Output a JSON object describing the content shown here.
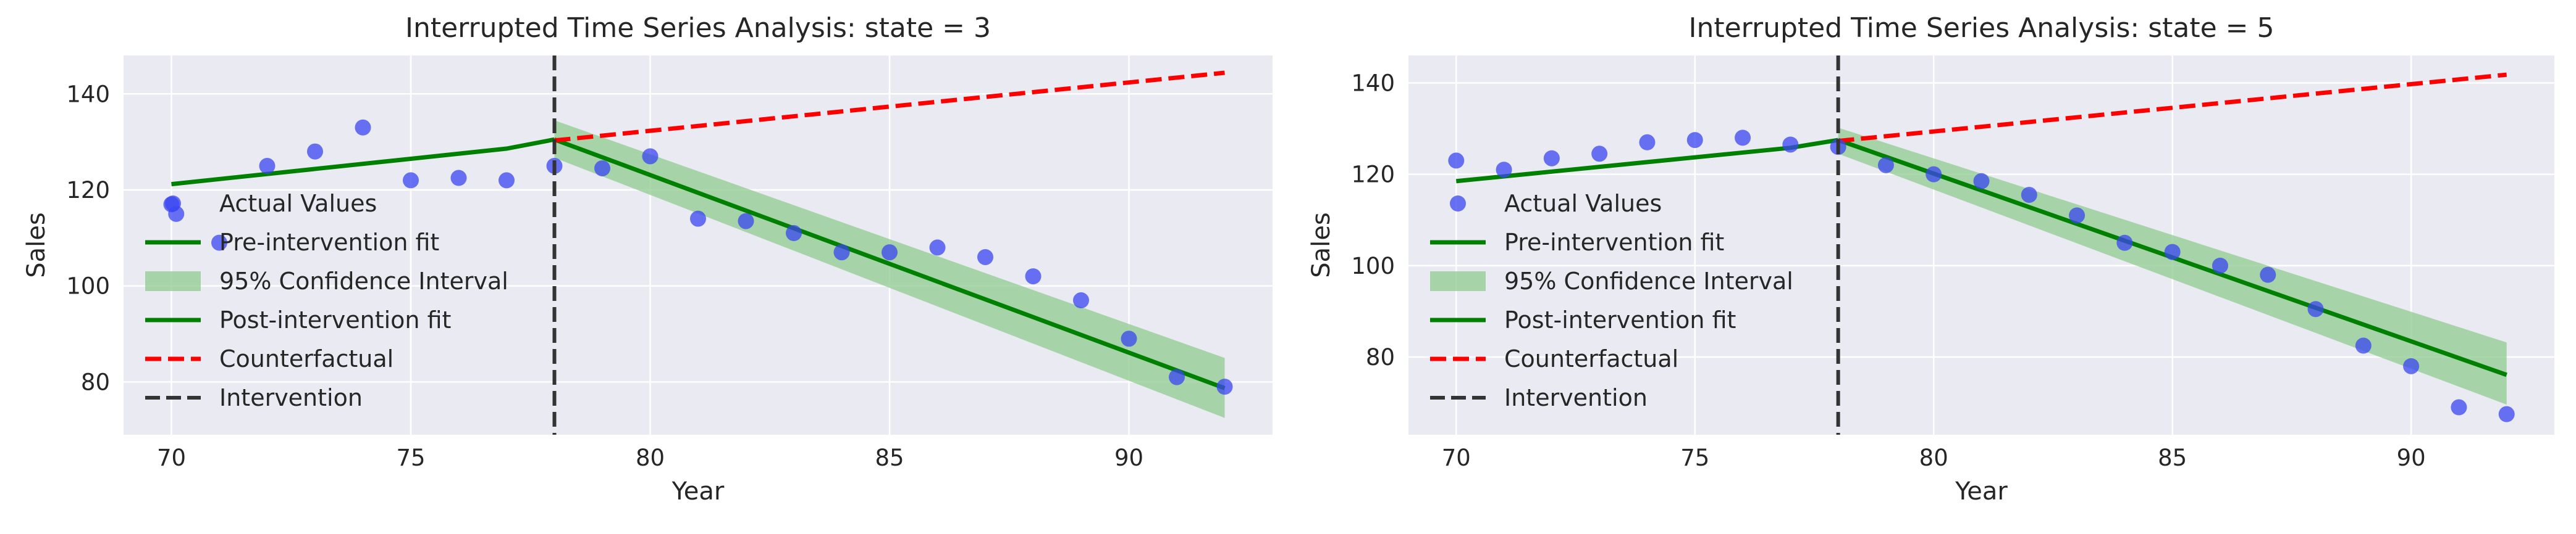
{
  "colors": {
    "plot_bg": "#EAEAF2",
    "grid": "#FFFFFF",
    "points": "#3A45F0",
    "fit": "#008000",
    "ci_fill": "#8FCB8F",
    "counterfactual": "#FF0000",
    "intervention": "#333333"
  },
  "chart_data": [
    {
      "type": "scatter",
      "title": "Interrupted Time Series Analysis: state = 3",
      "xlabel": "Year",
      "ylabel": "Sales",
      "xlim": [
        69,
        93
      ],
      "ylim": [
        69,
        148
      ],
      "xticks": [
        70,
        75,
        80,
        85,
        90
      ],
      "yticks": [
        80,
        100,
        120,
        140
      ],
      "grid": true,
      "legend_position": "center-left",
      "intervention_x": 78,
      "actual": {
        "x": [
          70,
          70.1,
          71,
          72,
          73,
          74,
          75,
          76,
          77,
          78,
          79,
          80,
          81,
          82,
          83,
          84,
          85,
          86,
          87,
          88,
          89,
          90,
          91,
          92
        ],
        "y": [
          117,
          115,
          109,
          125,
          128,
          133,
          122,
          122.5,
          122,
          125,
          124.5,
          127,
          114,
          113.5,
          111,
          107,
          107,
          108,
          106,
          102,
          97,
          89,
          81,
          79
        ]
      },
      "pre_fit": {
        "x": [
          70,
          77,
          78
        ],
        "y": [
          121.2,
          128.6,
          130.5
        ]
      },
      "post_fit": {
        "x": [
          78,
          92
        ],
        "y": [
          130.5,
          78.7
        ]
      },
      "ci": {
        "x": [
          78,
          92
        ],
        "lower": [
          126.7,
          72.5
        ],
        "upper": [
          134.5,
          85
        ]
      },
      "counterfactual": {
        "x": [
          78,
          92
        ],
        "y": [
          130.3,
          144.4
        ]
      },
      "legend": [
        {
          "label": "Actual Values",
          "kind": "dot"
        },
        {
          "label": "Pre-intervention fit",
          "kind": "fit"
        },
        {
          "label": "95% Confidence Interval",
          "kind": "ci"
        },
        {
          "label": "Post-intervention fit",
          "kind": "fit"
        },
        {
          "label": "Counterfactual",
          "kind": "counterfactual"
        },
        {
          "label": "Intervention",
          "kind": "intervention"
        }
      ]
    },
    {
      "type": "scatter",
      "title": "Interrupted Time Series Analysis: state = 5",
      "xlabel": "Year",
      "ylabel": "Sales",
      "xlim": [
        69,
        93
      ],
      "ylim": [
        63,
        146
      ],
      "xticks": [
        70,
        75,
        80,
        85,
        90
      ],
      "yticks": [
        80,
        100,
        120,
        140
      ],
      "grid": true,
      "legend_position": "center-left",
      "intervention_x": 78,
      "actual": {
        "x": [
          70,
          71,
          72,
          73,
          74,
          75,
          76,
          77,
          78,
          79,
          80,
          81,
          82,
          83,
          84,
          85,
          86,
          87,
          88,
          89,
          90,
          91,
          92
        ],
        "y": [
          123,
          121,
          123.5,
          124.5,
          127,
          127.5,
          128,
          126.5,
          126,
          122,
          120,
          118.5,
          115.5,
          111,
          105,
          103,
          100,
          98,
          90.5,
          82.5,
          78,
          69,
          67.5
        ]
      },
      "pre_fit": {
        "x": [
          70,
          77,
          78
        ],
        "y": [
          118.5,
          125.8,
          127.5
        ]
      },
      "post_fit": {
        "x": [
          78,
          92
        ],
        "y": [
          127.5,
          76.1
        ]
      },
      "ci": {
        "x": [
          78,
          92
        ],
        "lower": [
          124.5,
          69.6
        ],
        "upper": [
          130.2,
          83.2
        ]
      },
      "counterfactual": {
        "x": [
          78,
          92
        ],
        "y": [
          127.3,
          141.8
        ]
      },
      "legend": [
        {
          "label": "Actual Values",
          "kind": "dot"
        },
        {
          "label": "Pre-intervention fit",
          "kind": "fit"
        },
        {
          "label": "95% Confidence Interval",
          "kind": "ci"
        },
        {
          "label": "Post-intervention fit",
          "kind": "fit"
        },
        {
          "label": "Counterfactual",
          "kind": "counterfactual"
        },
        {
          "label": "Intervention",
          "kind": "intervention"
        }
      ]
    }
  ]
}
